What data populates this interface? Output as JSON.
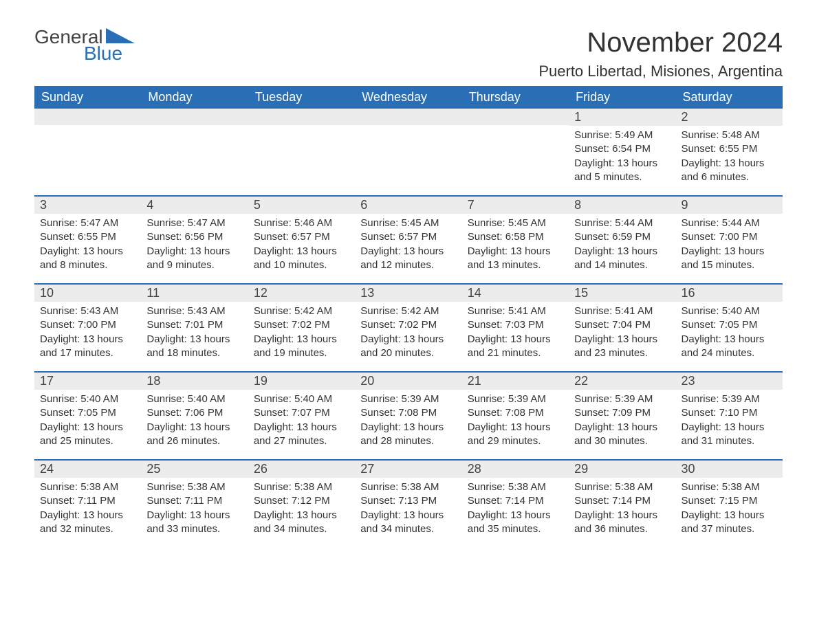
{
  "logo": {
    "text1": "General",
    "text2": "Blue",
    "tri_color": "#2a6fb5"
  },
  "title": "November 2024",
  "location": "Puerto Libertad, Misiones, Argentina",
  "colors": {
    "header_bg": "#2a6fb5",
    "header_text": "#ffffff",
    "daynum_bg": "#ececec",
    "text": "#333333",
    "divider": "#2a6fb5"
  },
  "day_headers": [
    "Sunday",
    "Monday",
    "Tuesday",
    "Wednesday",
    "Thursday",
    "Friday",
    "Saturday"
  ],
  "weeks": [
    [
      null,
      null,
      null,
      null,
      null,
      {
        "n": "1",
        "sunrise": "5:49 AM",
        "sunset": "6:54 PM",
        "daylight": "13 hours and 5 minutes."
      },
      {
        "n": "2",
        "sunrise": "5:48 AM",
        "sunset": "6:55 PM",
        "daylight": "13 hours and 6 minutes."
      }
    ],
    [
      {
        "n": "3",
        "sunrise": "5:47 AM",
        "sunset": "6:55 PM",
        "daylight": "13 hours and 8 minutes."
      },
      {
        "n": "4",
        "sunrise": "5:47 AM",
        "sunset": "6:56 PM",
        "daylight": "13 hours and 9 minutes."
      },
      {
        "n": "5",
        "sunrise": "5:46 AM",
        "sunset": "6:57 PM",
        "daylight": "13 hours and 10 minutes."
      },
      {
        "n": "6",
        "sunrise": "5:45 AM",
        "sunset": "6:57 PM",
        "daylight": "13 hours and 12 minutes."
      },
      {
        "n": "7",
        "sunrise": "5:45 AM",
        "sunset": "6:58 PM",
        "daylight": "13 hours and 13 minutes."
      },
      {
        "n": "8",
        "sunrise": "5:44 AM",
        "sunset": "6:59 PM",
        "daylight": "13 hours and 14 minutes."
      },
      {
        "n": "9",
        "sunrise": "5:44 AM",
        "sunset": "7:00 PM",
        "daylight": "13 hours and 15 minutes."
      }
    ],
    [
      {
        "n": "10",
        "sunrise": "5:43 AM",
        "sunset": "7:00 PM",
        "daylight": "13 hours and 17 minutes."
      },
      {
        "n": "11",
        "sunrise": "5:43 AM",
        "sunset": "7:01 PM",
        "daylight": "13 hours and 18 minutes."
      },
      {
        "n": "12",
        "sunrise": "5:42 AM",
        "sunset": "7:02 PM",
        "daylight": "13 hours and 19 minutes."
      },
      {
        "n": "13",
        "sunrise": "5:42 AM",
        "sunset": "7:02 PM",
        "daylight": "13 hours and 20 minutes."
      },
      {
        "n": "14",
        "sunrise": "5:41 AM",
        "sunset": "7:03 PM",
        "daylight": "13 hours and 21 minutes."
      },
      {
        "n": "15",
        "sunrise": "5:41 AM",
        "sunset": "7:04 PM",
        "daylight": "13 hours and 23 minutes."
      },
      {
        "n": "16",
        "sunrise": "5:40 AM",
        "sunset": "7:05 PM",
        "daylight": "13 hours and 24 minutes."
      }
    ],
    [
      {
        "n": "17",
        "sunrise": "5:40 AM",
        "sunset": "7:05 PM",
        "daylight": "13 hours and 25 minutes."
      },
      {
        "n": "18",
        "sunrise": "5:40 AM",
        "sunset": "7:06 PM",
        "daylight": "13 hours and 26 minutes."
      },
      {
        "n": "19",
        "sunrise": "5:40 AM",
        "sunset": "7:07 PM",
        "daylight": "13 hours and 27 minutes."
      },
      {
        "n": "20",
        "sunrise": "5:39 AM",
        "sunset": "7:08 PM",
        "daylight": "13 hours and 28 minutes."
      },
      {
        "n": "21",
        "sunrise": "5:39 AM",
        "sunset": "7:08 PM",
        "daylight": "13 hours and 29 minutes."
      },
      {
        "n": "22",
        "sunrise": "5:39 AM",
        "sunset": "7:09 PM",
        "daylight": "13 hours and 30 minutes."
      },
      {
        "n": "23",
        "sunrise": "5:39 AM",
        "sunset": "7:10 PM",
        "daylight": "13 hours and 31 minutes."
      }
    ],
    [
      {
        "n": "24",
        "sunrise": "5:38 AM",
        "sunset": "7:11 PM",
        "daylight": "13 hours and 32 minutes."
      },
      {
        "n": "25",
        "sunrise": "5:38 AM",
        "sunset": "7:11 PM",
        "daylight": "13 hours and 33 minutes."
      },
      {
        "n": "26",
        "sunrise": "5:38 AM",
        "sunset": "7:12 PM",
        "daylight": "13 hours and 34 minutes."
      },
      {
        "n": "27",
        "sunrise": "5:38 AM",
        "sunset": "7:13 PM",
        "daylight": "13 hours and 34 minutes."
      },
      {
        "n": "28",
        "sunrise": "5:38 AM",
        "sunset": "7:14 PM",
        "daylight": "13 hours and 35 minutes."
      },
      {
        "n": "29",
        "sunrise": "5:38 AM",
        "sunset": "7:14 PM",
        "daylight": "13 hours and 36 minutes."
      },
      {
        "n": "30",
        "sunrise": "5:38 AM",
        "sunset": "7:15 PM",
        "daylight": "13 hours and 37 minutes."
      }
    ]
  ],
  "labels": {
    "sunrise": "Sunrise:",
    "sunset": "Sunset:",
    "daylight": "Daylight:"
  }
}
